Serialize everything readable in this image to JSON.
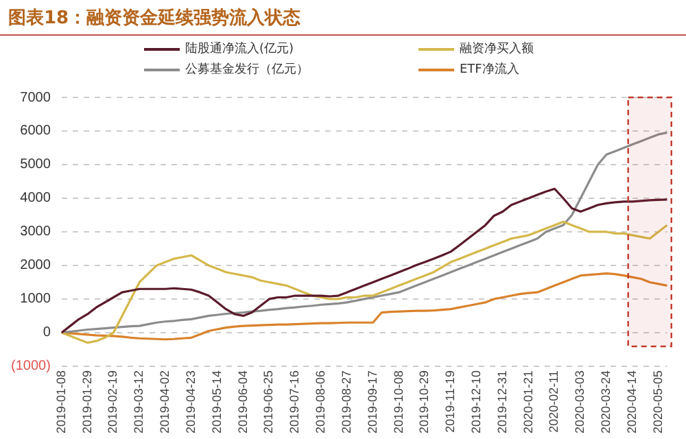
{
  "chart_data": {
    "type": "line",
    "title": "图表18：融资资金延续强势流入状态",
    "categories": [
      "2019-01-08",
      null,
      null,
      "2019-01-29",
      null,
      null,
      "2019-02-19",
      null,
      null,
      "2019-03-12",
      null,
      null,
      "2019-04-02",
      null,
      null,
      "2019-04-23",
      null,
      null,
      "2019-05-14",
      null,
      null,
      "2019-06-04",
      null,
      null,
      "2019-06-25",
      null,
      null,
      "2019-07-16",
      null,
      null,
      "2019-08-06",
      null,
      null,
      "2019-08-27",
      null,
      null,
      "2019-09-17",
      null,
      null,
      "2019-10-08",
      null,
      null,
      "2019-10-29",
      null,
      null,
      "2019-11-19",
      null,
      null,
      "2019-12-10",
      null,
      null,
      "2019-12-31",
      null,
      null,
      "2020-01-21",
      null,
      null,
      "2020-02-11",
      null,
      null,
      "2020-03-03",
      null,
      null,
      "2020-03-24",
      null,
      null,
      "2020-04-14",
      null,
      null,
      "2020-05-05",
      null
    ],
    "series": [
      {
        "name": "陆股通净流入(亿元)",
        "color": "#5a1a2a",
        "values": [
          0,
          200,
          400,
          550,
          750,
          900,
          1050,
          1200,
          1250,
          1300,
          1300,
          1300,
          1300,
          1320,
          1300,
          1280,
          1200,
          1100,
          900,
          700,
          550,
          500,
          600,
          800,
          1000,
          1050,
          1050,
          1100,
          1100,
          1100,
          1100,
          1080,
          1100,
          1200,
          1300,
          1400,
          1500,
          1600,
          1700,
          1800,
          1900,
          2010,
          2100,
          2200,
          2300,
          2410,
          2600,
          2800,
          3000,
          3200,
          3480,
          3600,
          3800,
          3900,
          4000,
          4100,
          4200,
          4280,
          4000,
          3700,
          3600,
          3700,
          3800,
          3850,
          3880,
          3900,
          3900,
          3920,
          3940,
          3950,
          3960
        ]
      },
      {
        "name": "融资净买入额",
        "color": "#d4b84a",
        "values": [
          0,
          -100,
          -200,
          -300,
          -250,
          -150,
          0,
          500,
          1000,
          1500,
          1750,
          2000,
          2100,
          2200,
          2250,
          2300,
          2150,
          2000,
          1900,
          1800,
          1750,
          1700,
          1650,
          1550,
          1500,
          1450,
          1400,
          1300,
          1200,
          1100,
          1050,
          1000,
          1000,
          1050,
          1050,
          1100,
          1100,
          1200,
          1300,
          1400,
          1500,
          1600,
          1700,
          1800,
          1950,
          2100,
          2200,
          2300,
          2400,
          2500,
          2600,
          2700,
          2800,
          2850,
          2900,
          3000,
          3100,
          3200,
          3300,
          3200,
          3100,
          3000,
          3000,
          3000,
          2950,
          2950,
          2900,
          2850,
          2800,
          3000,
          3200
        ]
      },
      {
        "name": "公募基金发行（亿元）",
        "color": "#8c8c8c",
        "values": [
          0,
          30,
          60,
          90,
          110,
          130,
          150,
          170,
          190,
          200,
          250,
          300,
          330,
          350,
          380,
          400,
          450,
          500,
          530,
          560,
          580,
          600,
          630,
          650,
          680,
          700,
          730,
          750,
          780,
          800,
          830,
          850,
          870,
          900,
          950,
          1000,
          1050,
          1100,
          1150,
          1200,
          1300,
          1400,
          1500,
          1600,
          1700,
          1800,
          1900,
          2000,
          2100,
          2200,
          2300,
          2400,
          2500,
          2600,
          2700,
          2800,
          3000,
          3100,
          3200,
          3500,
          4000,
          4500,
          5000,
          5300,
          5400,
          5500,
          5600,
          5700,
          5800,
          5900,
          5950
        ]
      },
      {
        "name": "ETF净流入",
        "color": "#d9822b",
        "values": [
          0,
          -20,
          -40,
          -60,
          -80,
          -90,
          -100,
          -120,
          -150,
          -170,
          -180,
          -190,
          -200,
          -190,
          -170,
          -150,
          -50,
          50,
          100,
          150,
          180,
          200,
          210,
          220,
          230,
          240,
          240,
          250,
          260,
          270,
          280,
          280,
          290,
          300,
          300,
          300,
          300,
          600,
          620,
          630,
          640,
          650,
          650,
          660,
          680,
          700,
          750,
          800,
          850,
          900,
          1000,
          1050,
          1100,
          1150,
          1180,
          1200,
          1300,
          1400,
          1500,
          1600,
          1700,
          1720,
          1740,
          1760,
          1740,
          1700,
          1650,
          1600,
          1500,
          1450,
          1400
        ]
      }
    ],
    "ylim": [
      -1000,
      7000
    ],
    "yticks": [
      {
        "value": -1000,
        "label": "(1000)"
      },
      0,
      1000,
      2000,
      3000,
      4000,
      5000,
      6000,
      7000
    ],
    "grid": "y",
    "legend": "top",
    "marker": "none",
    "line_style": "solid",
    "bands": [
      {
        "axis": "x",
        "from": "2020-04-14",
        "to": "2020-05-05",
        "color": "#c0392b"
      }
    ]
  }
}
